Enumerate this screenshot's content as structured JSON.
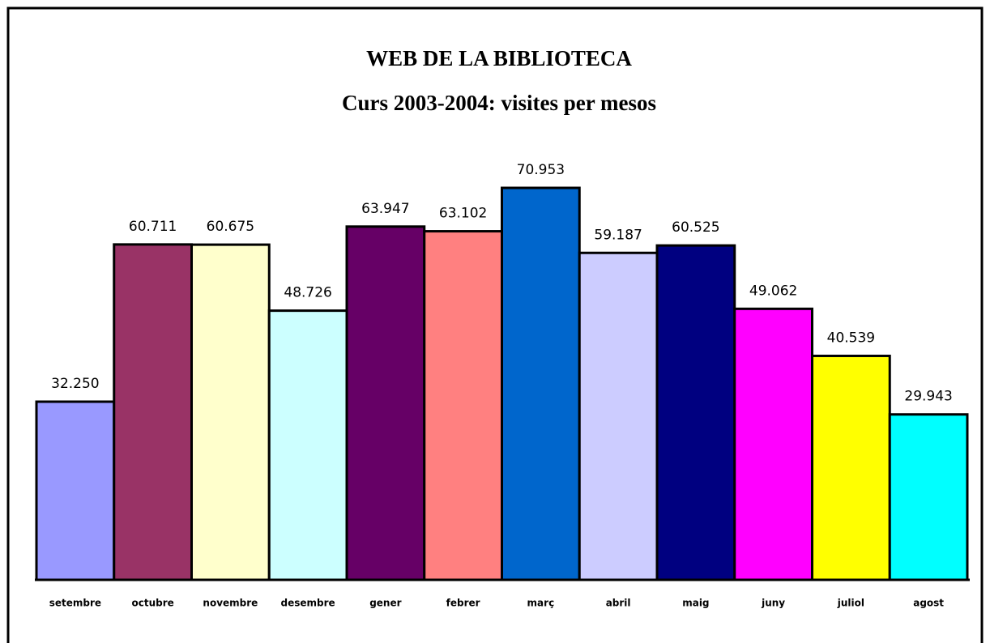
{
  "chart_data": {
    "type": "bar",
    "title": "WEB DE LA BIBLIOTECA",
    "subtitle": "Curs 2003-2004: visites per mesos",
    "categories": [
      "setembre",
      "octubre",
      "novembre",
      "desembre",
      "gener",
      "febrer",
      "març",
      "abril",
      "maig",
      "juny",
      "juliol",
      "agost"
    ],
    "values": [
      32250,
      60711,
      60675,
      48726,
      63947,
      63102,
      70953,
      59187,
      60525,
      49062,
      40539,
      29943
    ],
    "value_labels": [
      "32.250",
      "60.711",
      "60.675",
      "48.726",
      "63.947",
      "63.102",
      "70.953",
      "59.187",
      "60.525",
      "49.062",
      "40.539",
      "29.943"
    ],
    "colors": [
      "#9999ff",
      "#993366",
      "#ffffcc",
      "#ccffff",
      "#660066",
      "#ff8080",
      "#0066cc",
      "#ccccff",
      "#000080",
      "#ff00ff",
      "#ffff00",
      "#00ffff"
    ]
  }
}
